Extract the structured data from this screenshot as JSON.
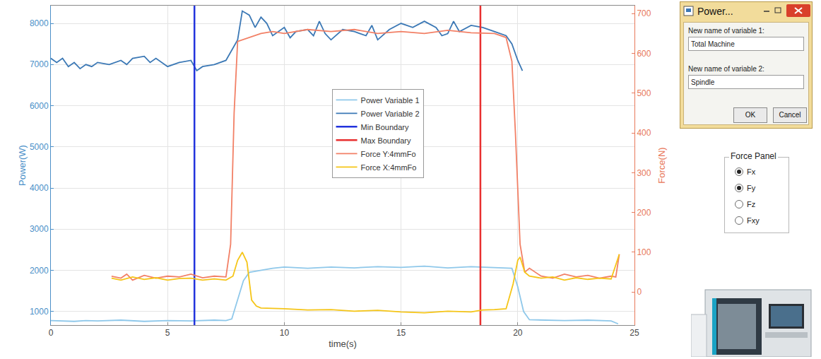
{
  "chart_data": {
    "type": "line",
    "x_label": "time(s)",
    "y_label": "Power(W)",
    "y2_label": "Force(N)",
    "xlim": [
      0,
      25
    ],
    "xticks": [
      0,
      5,
      10,
      15,
      20,
      25
    ],
    "ylim": [
      670,
      8430
    ],
    "yticks": [
      1000,
      2000,
      3000,
      4000,
      5000,
      6000,
      7000,
      8000
    ],
    "y2lim": [
      -83,
      720
    ],
    "y2ticks": [
      0,
      100,
      200,
      300,
      400,
      500,
      600,
      700
    ],
    "grid": true,
    "legend": "center",
    "series": [
      {
        "name": "Power Variable 1",
        "color": "#8fc8ea",
        "axis": "y",
        "x": [
          0,
          0.5,
          1,
          1.5,
          2,
          3,
          4,
          5,
          6,
          7,
          7.5,
          7.75,
          8,
          8.25,
          8.5,
          9,
          9.5,
          10,
          11,
          12,
          13,
          14,
          15,
          16,
          17,
          18,
          19,
          19.75,
          20,
          20.25,
          20.5,
          21,
          22,
          23,
          24,
          24.3
        ],
        "values": [
          780,
          770,
          760,
          780,
          770,
          790,
          760,
          780,
          770,
          790,
          780,
          820,
          1300,
          1750,
          1950,
          2000,
          2050,
          2080,
          2050,
          2080,
          2060,
          2090,
          2070,
          2100,
          2060,
          2090,
          2070,
          2050,
          1600,
          1000,
          800,
          790,
          780,
          790,
          770,
          700
        ]
      },
      {
        "name": "Power Variable 2",
        "color": "#3b78b5",
        "axis": "y",
        "x": [
          0,
          0.25,
          0.5,
          0.75,
          1,
          1.25,
          1.5,
          1.75,
          2,
          2.5,
          3,
          3.25,
          3.5,
          4,
          4.25,
          4.5,
          5,
          5.5,
          6,
          6.25,
          6.5,
          7,
          7.5,
          7.75,
          8,
          8.2,
          8.5,
          8.75,
          9,
          9.25,
          9.5,
          10,
          10.25,
          10.5,
          11,
          11.25,
          11.5,
          11.75,
          12,
          12.5,
          13,
          13.5,
          13.75,
          14,
          14.5,
          15,
          15.5,
          16,
          16.5,
          16.75,
          17,
          17.25,
          17.5,
          18,
          18.5,
          19,
          19.5,
          19.75,
          20,
          20.2
        ],
        "values": [
          7150,
          7050,
          7150,
          6950,
          7050,
          6900,
          7000,
          6950,
          7050,
          7000,
          7100,
          7000,
          7150,
          7200,
          7050,
          7150,
          6950,
          7050,
          7100,
          6850,
          6950,
          7000,
          7100,
          7350,
          7600,
          8300,
          8200,
          7900,
          8150,
          8000,
          7700,
          7900,
          7650,
          7800,
          7850,
          7700,
          8050,
          7750,
          7600,
          7850,
          7800,
          7700,
          7950,
          7600,
          7850,
          8000,
          7900,
          8050,
          7900,
          7700,
          7750,
          8050,
          7800,
          7950,
          7900,
          7800,
          7700,
          7500,
          7100,
          6850
        ]
      },
      {
        "name": "Min Boundary",
        "color": "#2233dd",
        "axis": "y",
        "x": [
          6.15,
          6.15
        ],
        "values": [
          670,
          8430
        ]
      },
      {
        "name": "Max Boundary",
        "color": "#e83030",
        "axis": "y",
        "x": [
          18.4,
          18.4
        ],
        "values": [
          670,
          8430
        ]
      },
      {
        "name": "Force Y:4mmFo",
        "color": "#f28066",
        "axis": "y2",
        "x": [
          2.6,
          3,
          3.25,
          3.5,
          4,
          4.5,
          5,
          5.5,
          6,
          6.5,
          7,
          7.5,
          7.7,
          7.85,
          8,
          8.5,
          9,
          9.5,
          10,
          11,
          12,
          13,
          14,
          15,
          16,
          17,
          18,
          19,
          19.5,
          19.75,
          19.9,
          20.1,
          20.3,
          20.5,
          21,
          21.5,
          22,
          22.5,
          23,
          23.5,
          24,
          24.2,
          24.35
        ],
        "values": [
          40,
          35,
          45,
          30,
          42,
          35,
          40,
          38,
          45,
          36,
          40,
          38,
          120,
          450,
          630,
          640,
          650,
          655,
          650,
          660,
          655,
          660,
          650,
          655,
          650,
          658,
          652,
          650,
          640,
          580,
          400,
          120,
          50,
          60,
          40,
          35,
          45,
          38,
          42,
          35,
          40,
          38,
          95
        ]
      },
      {
        "name": "Force X:4mmFo",
        "color": "#f5c518",
        "axis": "y2",
        "x": [
          2.6,
          3,
          3.5,
          4,
          4.5,
          5,
          5.5,
          6,
          6.5,
          7,
          7.5,
          7.8,
          8,
          8.2,
          8.4,
          8.6,
          8.8,
          9,
          10,
          11,
          12,
          13,
          14,
          15,
          16,
          17,
          18,
          18.5,
          19,
          19.5,
          19.8,
          20,
          20.1,
          20.3,
          20.5,
          21,
          21.5,
          22,
          22.5,
          23,
          23.5,
          24,
          24.35
        ],
        "values": [
          35,
          30,
          38,
          32,
          36,
          30,
          34,
          35,
          30,
          33,
          30,
          40,
          80,
          100,
          75,
          -20,
          -35,
          -40,
          -42,
          -45,
          -44,
          -48,
          -46,
          -50,
          -52,
          -48,
          -50,
          -45,
          -44,
          -42,
          20,
          80,
          88,
          50,
          40,
          35,
          38,
          30,
          36,
          32,
          35,
          33,
          95
        ]
      }
    ]
  },
  "dialog": {
    "title": "Power...",
    "fields": [
      {
        "label": "New name of variable 1:",
        "value": "Total Machine"
      },
      {
        "label": "New name of variable 2:",
        "value": "Spindle"
      }
    ],
    "buttons": [
      "OK",
      "Cancel"
    ]
  },
  "force_panel": {
    "title": "Force Panel",
    "options": [
      {
        "label": "Fx",
        "checked": true
      },
      {
        "label": "Fy",
        "checked": true
      },
      {
        "label": "Fz",
        "checked": false
      },
      {
        "label": "Fxy",
        "checked": false
      }
    ]
  }
}
